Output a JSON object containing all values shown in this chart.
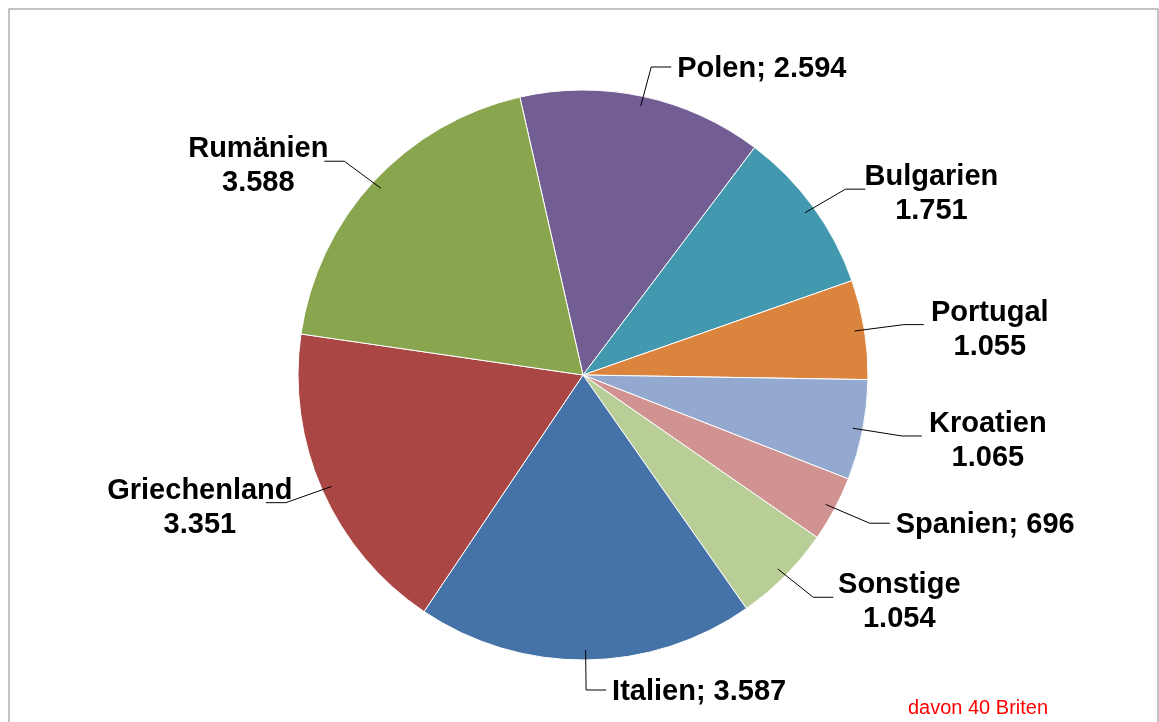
{
  "chart_data": {
    "type": "pie",
    "categories": [
      "Polen",
      "Bulgarien",
      "Portugal",
      "Kroatien",
      "Spanien",
      "Sonstige",
      "Italien",
      "Griechenland",
      "Rumänien"
    ],
    "values": [
      2594,
      1751,
      1055,
      1065,
      696,
      1054,
      3587,
      3351,
      3588
    ],
    "value_labels": [
      "2.594",
      "1.751",
      "1.055",
      "1.065",
      "696",
      "1.054",
      "3.587",
      "3.351",
      "3.588"
    ],
    "colors": [
      "#725e93",
      "#4198af",
      "#db843d",
      "#93a9cf",
      "#d19392",
      "#b9cd96",
      "#4572a7",
      "#aa4643",
      "#89a54e"
    ],
    "annotations": [
      "davon 40 Briten"
    ]
  }
}
